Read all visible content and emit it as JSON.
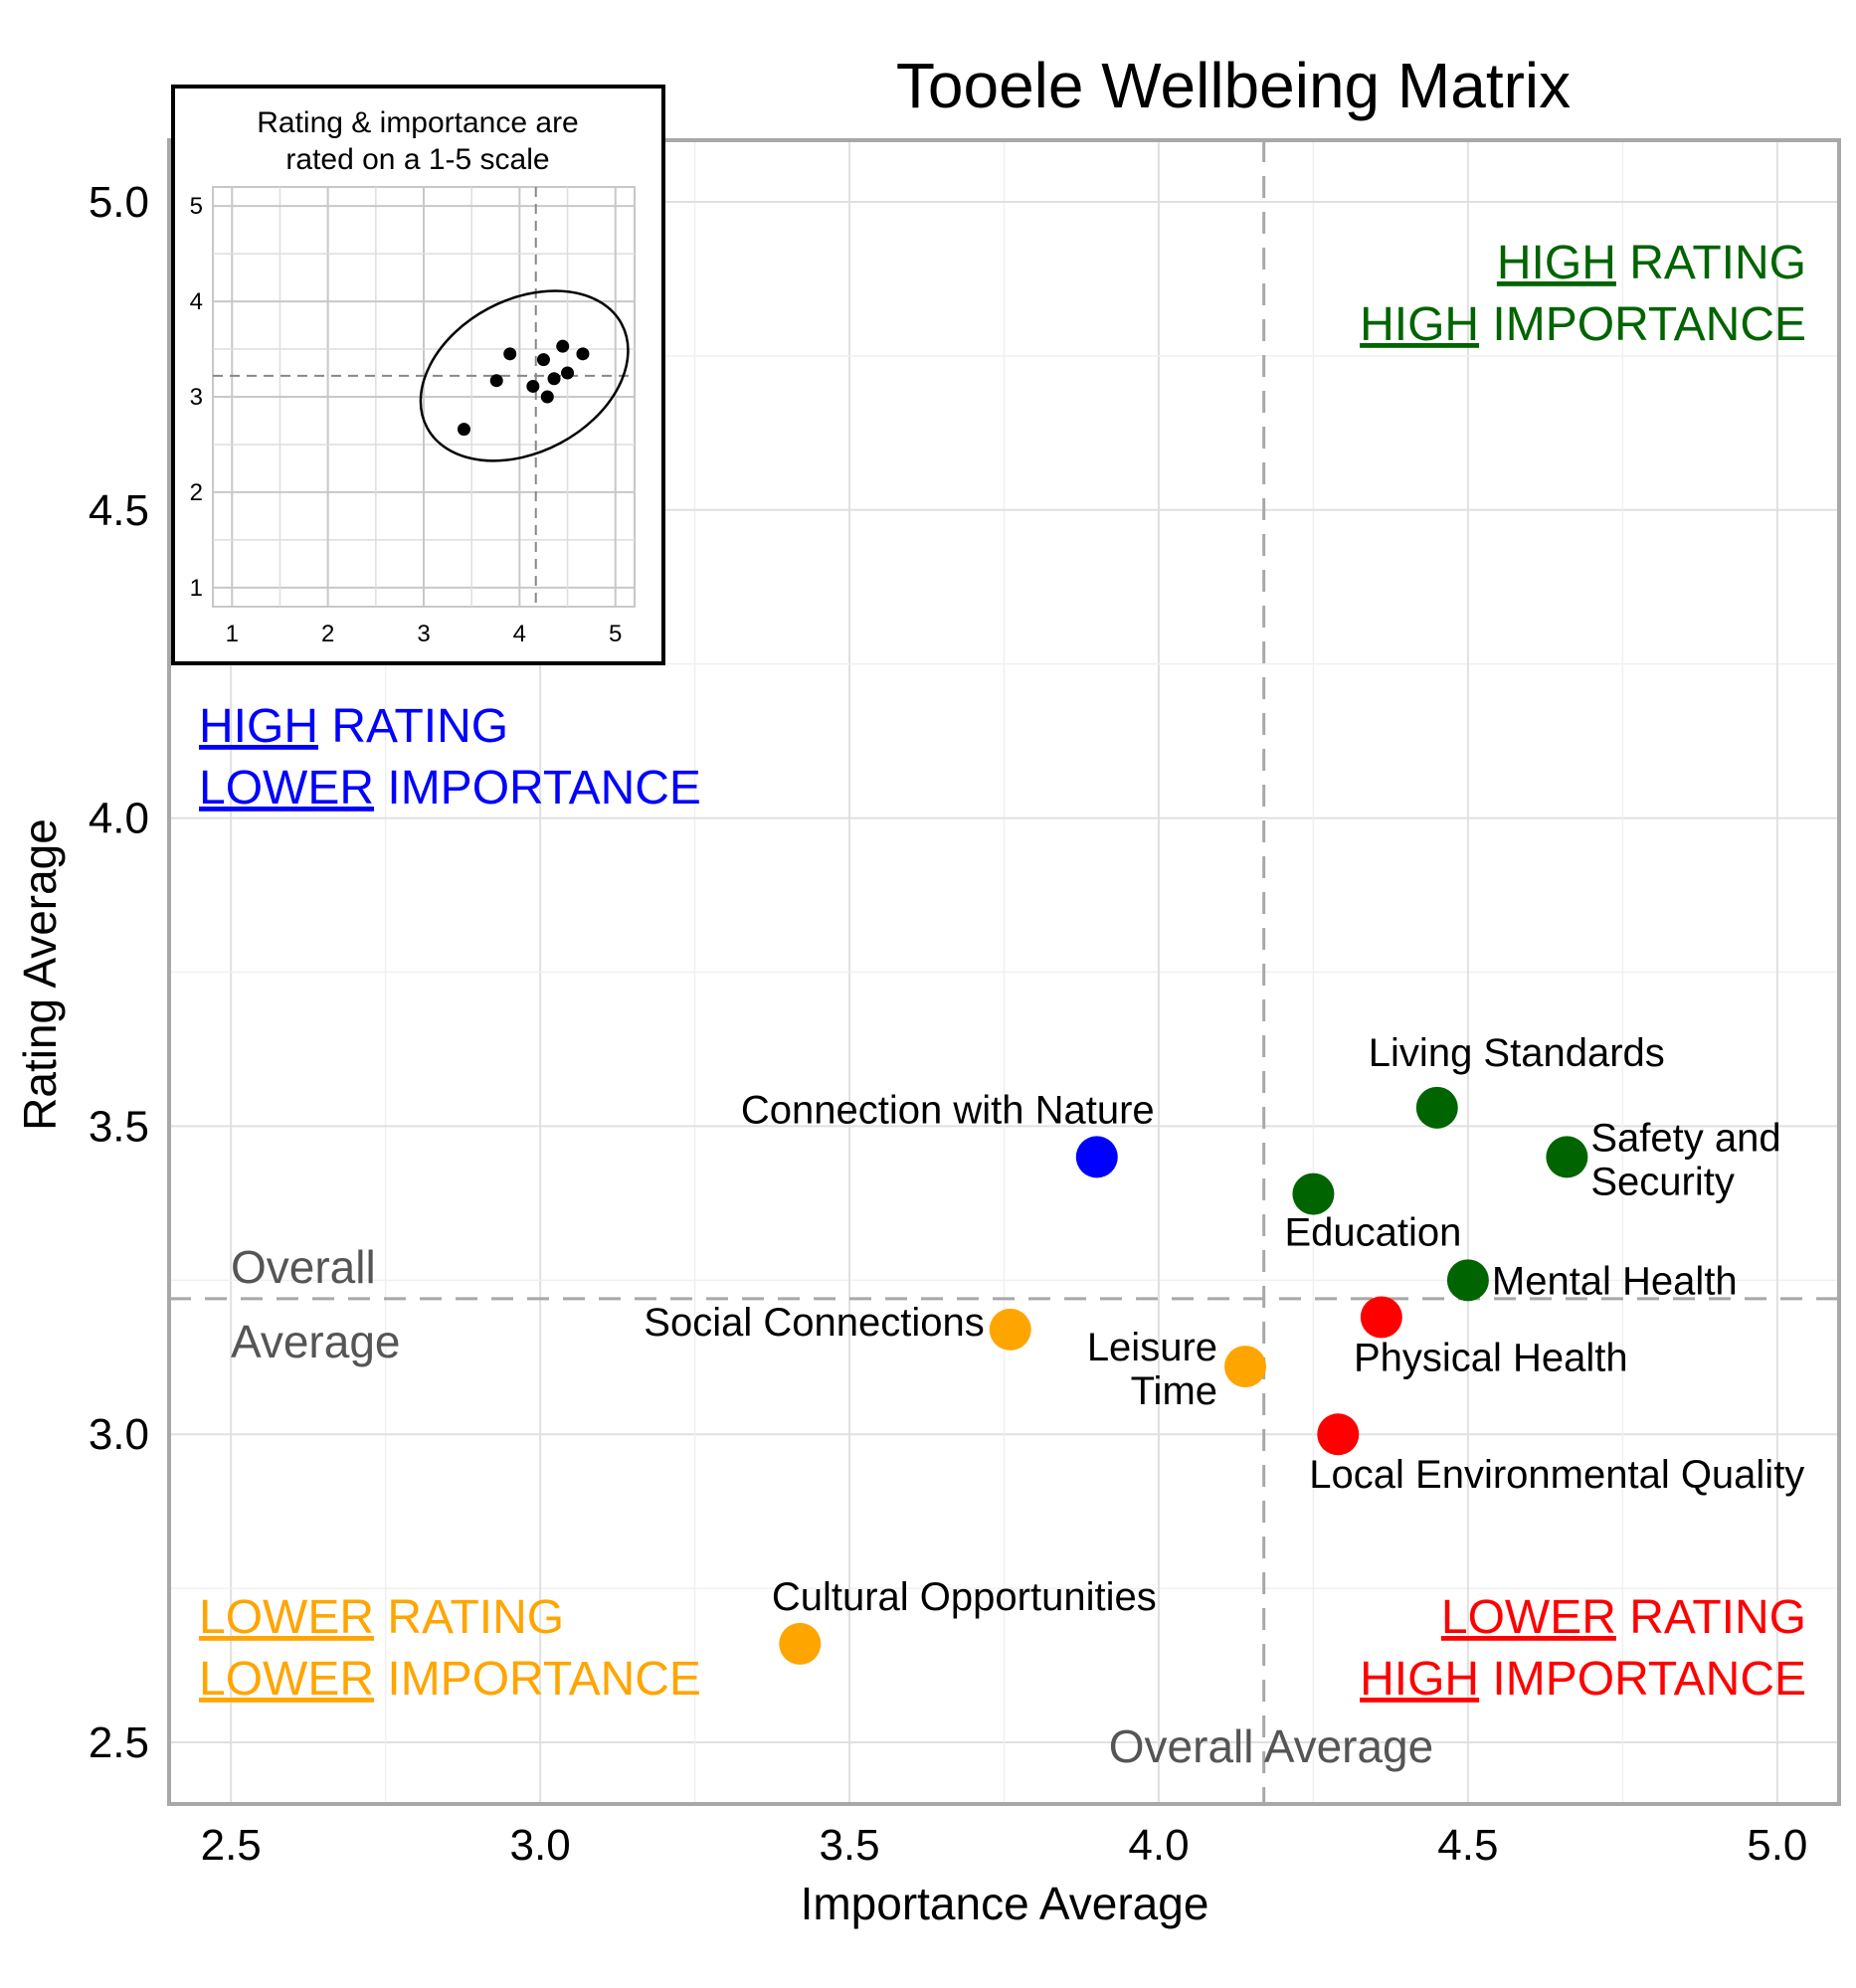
{
  "chart_data": {
    "type": "scatter",
    "title": "Tooele Wellbeing Matrix",
    "xlabel": "Importance Average",
    "ylabel": "Rating Average",
    "xlim": [
      2.4,
      5.1
    ],
    "ylim": [
      2.4,
      5.1
    ],
    "xticks": [
      "2.5",
      "3.0",
      "3.5",
      "4.0",
      "4.5",
      "5.0"
    ],
    "yticks": [
      "2.5",
      "3.0",
      "3.5",
      "4.0",
      "4.5",
      "5.0"
    ],
    "grid": true,
    "reference_lines": {
      "x": 4.17,
      "y": 3.22,
      "x_label": "Overall Average",
      "y_label_line1": "Overall",
      "y_label_line2": "Average"
    },
    "points": [
      {
        "label": "Living Standards",
        "x": 4.45,
        "y": 3.53,
        "color": "#006400"
      },
      {
        "label": "Safety and Security",
        "x": 4.66,
        "y": 3.45,
        "color": "#006400"
      },
      {
        "label": "Education",
        "x": 4.25,
        "y": 3.39,
        "color": "#006400"
      },
      {
        "label": "Mental Health",
        "x": 4.5,
        "y": 3.25,
        "color": "#006400"
      },
      {
        "label": "Connection with Nature",
        "x": 3.9,
        "y": 3.45,
        "color": "#0000ff"
      },
      {
        "label": "Physical Health",
        "x": 4.36,
        "y": 3.19,
        "color": "#ff0000"
      },
      {
        "label": "Local Environmental Quality",
        "x": 4.29,
        "y": 3.0,
        "color": "#ff0000"
      },
      {
        "label": "Social Connections",
        "x": 3.76,
        "y": 3.17,
        "color": "#ffa500"
      },
      {
        "label": "Leisure Time",
        "x": 4.14,
        "y": 3.11,
        "color": "#ffa500"
      },
      {
        "label": "Cultural Opportunities",
        "x": 3.42,
        "y": 2.66,
        "color": "#ffa500"
      }
    ],
    "quadrants": {
      "high_high": {
        "a1": "HIGH",
        "b1": " RATING",
        "a2": "HIGH",
        "b2": " IMPORTANCE",
        "color": "#006400"
      },
      "high_low": {
        "a1": "HIGH",
        "b1": " RATING",
        "a2": "LOWER",
        "b2": " IMPORTANCE",
        "color": "#0000ff"
      },
      "low_low": {
        "a1": "LOWER",
        "b1": " RATING",
        "a2": "LOWER",
        "b2": " IMPORTANCE",
        "color": "#ffa500"
      },
      "low_high": {
        "a1": "LOWER",
        "b1": " RATING",
        "a2": "HIGH",
        "b2": " IMPORTANCE",
        "color": "#ff0000"
      }
    },
    "inset": {
      "title_line1": "Rating & importance are",
      "title_line2": "rated on a 1-5 scale",
      "xlim": [
        0.8,
        5.2
      ],
      "ylim": [
        0.8,
        5.2
      ],
      "xticks": [
        "1",
        "2",
        "3",
        "4",
        "5"
      ],
      "yticks": [
        "1",
        "2",
        "3",
        "4",
        "5"
      ],
      "ref_x": 4.17,
      "ref_y": 3.22,
      "points": [
        {
          "x": 4.45,
          "y": 3.53
        },
        {
          "x": 4.66,
          "y": 3.45
        },
        {
          "x": 4.25,
          "y": 3.39
        },
        {
          "x": 4.5,
          "y": 3.25
        },
        {
          "x": 3.9,
          "y": 3.45
        },
        {
          "x": 4.36,
          "y": 3.19
        },
        {
          "x": 4.29,
          "y": 3.0
        },
        {
          "x": 3.76,
          "y": 3.17
        },
        {
          "x": 4.14,
          "y": 3.11
        },
        {
          "x": 3.42,
          "y": 2.66
        }
      ],
      "ellipse": {
        "cx": 4.05,
        "cy": 3.22,
        "rx": 1.15,
        "ry": 0.8,
        "rotation_deg": -28
      }
    }
  }
}
